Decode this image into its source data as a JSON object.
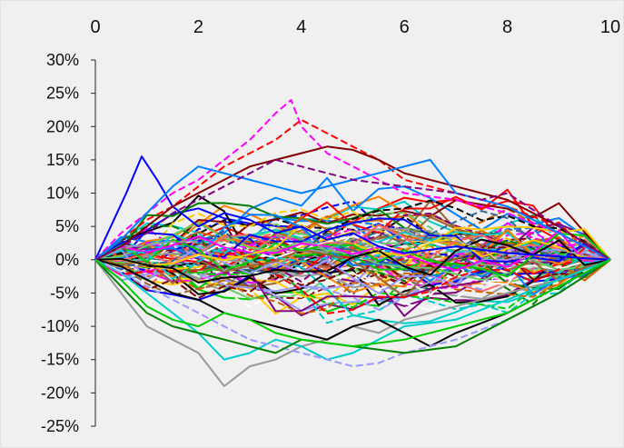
{
  "chart_data": {
    "type": "line",
    "xlim": [
      0,
      10
    ],
    "ylim": [
      -25,
      30
    ],
    "x_tick_labels": [
      "0",
      "2",
      "4",
      "6",
      "8",
      "10"
    ],
    "y_tick_labels": [
      "30%",
      "25%",
      "20%",
      "15%",
      "10%",
      "5%",
      "0%",
      "-5%",
      "-10%",
      "-15%",
      "-20%",
      "-25%"
    ],
    "x_axis_position": "top",
    "grid": false,
    "legend": "none",
    "series_count": 100,
    "description_of_data": "Many simulated paths starting at 0% at x=0 and ending at 0% at x=10; values estimated from the figure",
    "colors": [
      "#0000ff",
      "#ff0000",
      "#00cc00",
      "#ff00ff",
      "#00cccc",
      "#ffcc00",
      "#000000",
      "#999999",
      "#800080",
      "#008000",
      "#ff8000",
      "#0080ff",
      "#800000",
      "#ffffff",
      "#66cc66",
      "#cc6600",
      "#9999ff",
      "#ff6666",
      "#336699",
      "#996633"
    ],
    "highlighted_series": [
      {
        "x": [
          0,
          0.3,
          0.6,
          0.9,
          1.2,
          1.5,
          2.0,
          2.5,
          3.0,
          3.5,
          4.0,
          4.5,
          5.0,
          5.5,
          6.0,
          7.0,
          8.0,
          9.0,
          10.0
        ],
        "y": [
          0,
          5,
          10,
          15.5,
          12,
          8,
          5,
          7,
          6,
          4,
          5,
          3,
          4,
          2,
          1,
          2,
          1,
          0.5,
          0
        ],
        "color": "#0000ff",
        "dashed": false
      },
      {
        "x": [
          0,
          0.5,
          1.0,
          1.5,
          2.0,
          2.5,
          3.0,
          3.5,
          3.8,
          4.0,
          4.5,
          5.0,
          5.5,
          6.0,
          7.0,
          8.0,
          9.0,
          10.0
        ],
        "y": [
          0,
          4,
          7,
          10,
          12,
          15,
          18,
          22,
          24,
          20,
          16,
          14,
          12,
          10,
          9,
          7,
          4,
          0
        ],
        "color": "#ff00ff",
        "dashed": true
      },
      {
        "x": [
          0,
          0.5,
          1.0,
          1.5,
          2.0,
          2.5,
          3.0,
          3.5,
          4.0,
          4.5,
          5.0,
          5.5,
          6.0,
          7.0,
          8.0,
          9.0,
          10.0
        ],
        "y": [
          0,
          3,
          6,
          8,
          11,
          14,
          16,
          18,
          21,
          19,
          17,
          15,
          12,
          10,
          8,
          5,
          0
        ],
        "color": "#ff0000",
        "dashed": true
      },
      {
        "x": [
          0,
          0.3,
          0.6,
          1.0,
          1.5,
          2.0,
          2.5,
          3.0,
          3.5,
          4.0,
          4.5,
          5.0,
          5.5,
          6.0,
          7.0,
          8.0,
          9.0,
          10.0
        ],
        "y": [
          0,
          -3,
          -6,
          -10,
          -12,
          -14,
          -19,
          -16,
          -15,
          -13,
          -12,
          -10,
          -11,
          -9,
          -7,
          -5,
          -3,
          0
        ],
        "color": "#999999",
        "dashed": false
      },
      {
        "x": [
          0,
          0.5,
          1.0,
          1.5,
          2.0,
          2.5,
          3.0,
          3.5,
          4.0,
          4.5,
          5.0,
          5.5,
          6.0,
          7.0,
          8.0,
          9.0,
          10.0
        ],
        "y": [
          0,
          -2,
          -5,
          -8,
          -11,
          -15,
          -14,
          -12,
          -13,
          -15,
          -14,
          -12,
          -10,
          -9,
          -6,
          -3,
          0
        ],
        "color": "#00cccc",
        "dashed": false
      },
      {
        "x": [
          0,
          0.5,
          1.0,
          1.5,
          2.0,
          2.5,
          3.0,
          3.5,
          4.0,
          4.5,
          5.0,
          5.5,
          6.0,
          6.5,
          7.0,
          8.0,
          9.0,
          10.0
        ],
        "y": [
          0,
          -1,
          -3,
          -5,
          -6,
          -8,
          -9,
          -10,
          -11,
          -12,
          -10,
          -9,
          -11,
          -13,
          -11,
          -8,
          -4,
          0
        ],
        "color": "#000000",
        "dashed": false
      },
      {
        "x": [
          0,
          0.5,
          1.0,
          1.5,
          2.0,
          2.5,
          3.0,
          3.5,
          4.0,
          4.5,
          5.0,
          5.5,
          6.0,
          7.0,
          8.0,
          9.0,
          10.0
        ],
        "y": [
          0,
          -2,
          -4,
          -6,
          -8,
          -10,
          -12,
          -13,
          -14,
          -15,
          -16,
          -15.5,
          -14,
          -12,
          -9,
          -5,
          0
        ],
        "color": "#9999ff",
        "dashed": true
      },
      {
        "x": [
          0,
          0.5,
          1.0,
          1.5,
          2.0,
          2.5,
          3.0,
          3.5,
          4.0,
          4.5,
          5.0,
          5.5,
          6.0,
          7.0,
          8.0,
          9.0,
          10.0
        ],
        "y": [
          0,
          2,
          5,
          8,
          10,
          12,
          14,
          15,
          16,
          17,
          16.5,
          15,
          13,
          11,
          9,
          5,
          0
        ],
        "color": "#800000",
        "dashed": false
      },
      {
        "x": [
          0,
          0.5,
          1.0,
          1.5,
          2.0,
          2.5,
          3.0,
          3.5,
          4.0,
          5.0,
          6.0,
          7.0,
          8.0,
          9.0,
          10.0
        ],
        "y": [
          0,
          -4,
          -8,
          -10,
          -11,
          -12,
          -13,
          -14,
          -12,
          -13,
          -14,
          -13,
          -9,
          -5,
          0
        ],
        "color": "#008000",
        "dashed": false
      },
      {
        "x": [
          0,
          0.5,
          1.0,
          1.5,
          2.0,
          2.5,
          3.0,
          3.5,
          4.0,
          5.0,
          6.0,
          6.5,
          7.0,
          8.0,
          9.0,
          10.0
        ],
        "y": [
          0,
          3,
          7,
          11,
          14,
          13,
          12,
          11,
          10,
          12,
          14,
          15,
          10,
          8,
          4,
          0
        ],
        "color": "#0080ff",
        "dashed": false
      },
      {
        "x": [
          0,
          0.5,
          1.0,
          1.5,
          2.0,
          2.5,
          3.0,
          3.5,
          4.0,
          5.0,
          6.0,
          7.0,
          7.5,
          8.0,
          9.0,
          10.0
        ],
        "y": [
          0,
          2,
          4,
          7,
          9,
          11,
          13,
          15,
          14,
          12,
          11,
          10,
          9,
          10,
          5,
          0
        ],
        "color": "#800080",
        "dashed": true
      },
      {
        "x": [
          0,
          0.5,
          1.0,
          1.5,
          2.0,
          2.5,
          3.0,
          3.5,
          4.0,
          5.0,
          6.0,
          7.0,
          8.0,
          9.0,
          10.0
        ],
        "y": [
          0,
          -3,
          -7,
          -9,
          -10,
          -8,
          -9,
          -11,
          -12,
          -13,
          -12,
          -10,
          -8,
          -4,
          0
        ],
        "color": "#00cc00",
        "dashed": false
      }
    ]
  }
}
